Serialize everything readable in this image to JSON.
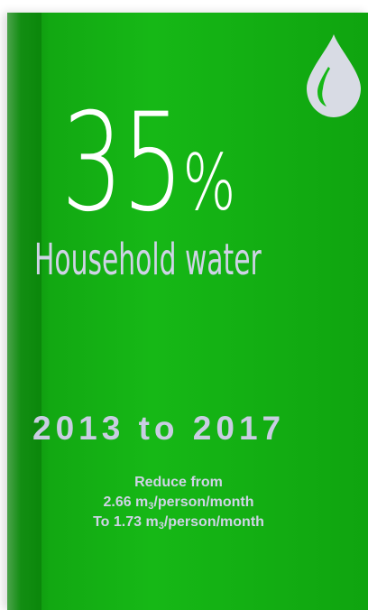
{
  "card": {
    "background_color": "#16b816",
    "text_color": "#cfd3e6"
  },
  "icon": {
    "name": "water-drop-icon",
    "color": "#d8dbe4"
  },
  "headline": {
    "number": "35",
    "percent_sign": "%",
    "subtitle": "Household water"
  },
  "period": {
    "label": "2013 to 2017"
  },
  "details": {
    "line1": "Reduce from",
    "line2_value": "2.66 m",
    "line2_sub": "3",
    "line2_unit": "/person/month",
    "line3_value": "To 1.73 m",
    "line3_sub": "3",
    "line3_unit": "/person/month"
  }
}
